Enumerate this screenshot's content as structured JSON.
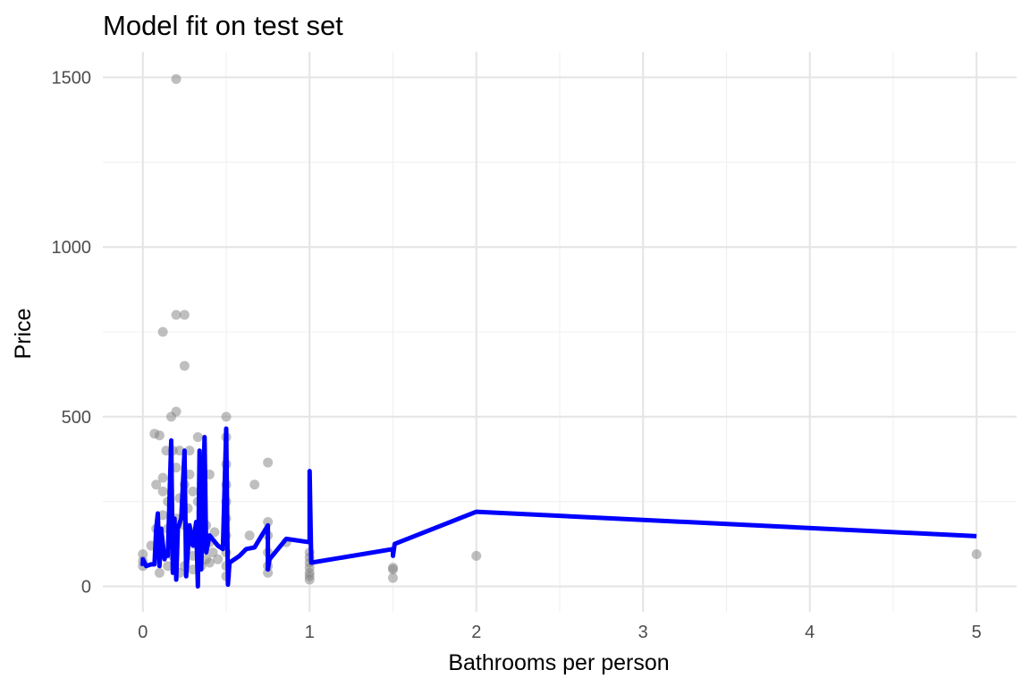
{
  "chart_data": {
    "type": "scatter",
    "title": "Model fit on test set",
    "xlabel": "Bathrooms per person",
    "ylabel": "Price",
    "xlim": [
      -0.24,
      5.24
    ],
    "ylim": [
      -75,
      1575
    ],
    "xticks": [
      0,
      1,
      2,
      3,
      4,
      5
    ],
    "yticks": [
      0,
      500,
      1000,
      1500
    ],
    "grid": true,
    "colors": {
      "points": "#7f7f7f",
      "fit_line": "#0000ff",
      "grid": "#e5e5e5"
    },
    "series": [
      {
        "kind": "points",
        "points": [
          [
            0,
            95
          ],
          [
            0,
            75
          ],
          [
            0,
            60
          ],
          [
            0.07,
            450
          ],
          [
            0.1,
            445
          ],
          [
            0.12,
            750
          ],
          [
            0.17,
            500
          ],
          [
            0.2,
            800
          ],
          [
            0.25,
            800
          ],
          [
            0.2,
            515
          ],
          [
            0.25,
            650
          ],
          [
            0.2,
            1495
          ],
          [
            0.08,
            300
          ],
          [
            0.14,
            400
          ],
          [
            0.18,
            400
          ],
          [
            0.22,
            400
          ],
          [
            0.28,
            400
          ],
          [
            0.33,
            440
          ],
          [
            0.4,
            330
          ],
          [
            0.5,
            500
          ],
          [
            0.5,
            440
          ],
          [
            0.5,
            360
          ],
          [
            0.5,
            300
          ],
          [
            0.5,
            250
          ],
          [
            0.5,
            200
          ],
          [
            0.5,
            150
          ],
          [
            0.5,
            100
          ],
          [
            0.5,
            60
          ],
          [
            0.5,
            30
          ],
          [
            0.64,
            150
          ],
          [
            0.67,
            300
          ],
          [
            0.75,
            365
          ],
          [
            0.75,
            190
          ],
          [
            0.75,
            150
          ],
          [
            0.75,
            100
          ],
          [
            0.75,
            60
          ],
          [
            0.75,
            40
          ],
          [
            0.86,
            130
          ],
          [
            1,
            100
          ],
          [
            1,
            85
          ],
          [
            1,
            70
          ],
          [
            1,
            55
          ],
          [
            1,
            40
          ],
          [
            1,
            30
          ],
          [
            1,
            20
          ],
          [
            1.5,
            55
          ],
          [
            1.5,
            50
          ],
          [
            1.5,
            25
          ],
          [
            2,
            90
          ],
          [
            5,
            95
          ],
          [
            0.1,
            40
          ],
          [
            0.12,
            320
          ],
          [
            0.12,
            280
          ],
          [
            0.15,
            250
          ],
          [
            0.15,
            170
          ],
          [
            0.17,
            120
          ],
          [
            0.2,
            200
          ],
          [
            0.2,
            350
          ],
          [
            0.22,
            260
          ],
          [
            0.25,
            300
          ],
          [
            0.25,
            180
          ],
          [
            0.25,
            60
          ],
          [
            0.27,
            230
          ],
          [
            0.28,
            330
          ],
          [
            0.3,
            280
          ],
          [
            0.3,
            160
          ],
          [
            0.3,
            90
          ],
          [
            0.33,
            250
          ],
          [
            0.33,
            120
          ],
          [
            0.35,
            220
          ],
          [
            0.36,
            300
          ],
          [
            0.38,
            180
          ],
          [
            0.38,
            80
          ],
          [
            0.4,
            130
          ],
          [
            0.4,
            70
          ],
          [
            0.42,
            100
          ],
          [
            0.15,
            60
          ],
          [
            0.18,
            90
          ],
          [
            0.1,
            130
          ],
          [
            0.12,
            210
          ],
          [
            0.08,
            170
          ],
          [
            0.05,
            120
          ],
          [
            0.22,
            40
          ],
          [
            0.3,
            50
          ],
          [
            0.35,
            60
          ],
          [
            0.45,
            80
          ],
          [
            0.43,
            160
          ]
        ]
      },
      {
        "kind": "line",
        "points": [
          [
            0,
            60
          ],
          [
            0,
            80
          ],
          [
            0.02,
            60
          ],
          [
            0.05,
            65
          ],
          [
            0.07,
            65
          ],
          [
            0.08,
            170
          ],
          [
            0.09,
            215
          ],
          [
            0.1,
            60
          ],
          [
            0.11,
            170
          ],
          [
            0.13,
            80
          ],
          [
            0.14,
            100
          ],
          [
            0.15,
            90
          ],
          [
            0.17,
            430
          ],
          [
            0.18,
            40
          ],
          [
            0.19,
            200
          ],
          [
            0.2,
            20
          ],
          [
            0.21,
            170
          ],
          [
            0.23,
            200
          ],
          [
            0.25,
            400
          ],
          [
            0.26,
            30
          ],
          [
            0.28,
            180
          ],
          [
            0.3,
            120
          ],
          [
            0.32,
            190
          ],
          [
            0.33,
            0
          ],
          [
            0.34,
            400
          ],
          [
            0.35,
            50
          ],
          [
            0.37,
            440
          ],
          [
            0.38,
            100
          ],
          [
            0.4,
            150
          ],
          [
            0.45,
            120
          ],
          [
            0.48,
            110
          ],
          [
            0.5,
            465
          ],
          [
            0.51,
            5
          ],
          [
            0.52,
            70
          ],
          [
            0.55,
            80
          ],
          [
            0.58,
            90
          ],
          [
            0.62,
            110
          ],
          [
            0.67,
            115
          ],
          [
            0.75,
            180
          ],
          [
            0.75,
            50
          ],
          [
            0.76,
            80
          ],
          [
            0.86,
            140
          ],
          [
            1,
            130
          ],
          [
            1,
            340
          ],
          [
            1.01,
            70
          ],
          [
            1.5,
            110
          ],
          [
            1.5,
            90
          ],
          [
            1.51,
            125
          ],
          [
            2,
            220
          ],
          [
            5,
            148
          ]
        ]
      }
    ]
  }
}
